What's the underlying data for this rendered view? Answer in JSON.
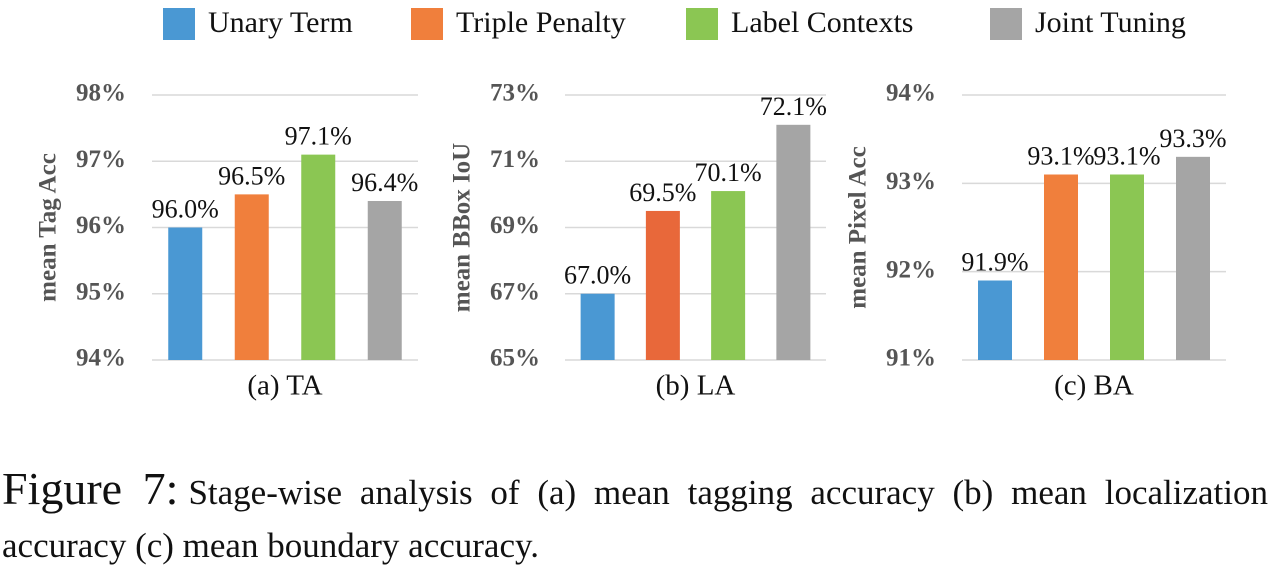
{
  "legend": [
    {
      "name": "Unary Term",
      "color": "#4a98d3"
    },
    {
      "name": "Triple Penalty",
      "color": "#f07f3c"
    },
    {
      "name": "Label Contexts",
      "color": "#8bc653"
    },
    {
      "name": "Joint Tuning",
      "color": "#a5a5a5"
    }
  ],
  "chart_data": [
    {
      "type": "bar",
      "xlabel": "(a) TA",
      "ylabel": "mean Tag Acc",
      "values": [
        96.0,
        96.5,
        97.1,
        96.4
      ],
      "value_labels": [
        "96.0%",
        "96.5%",
        "97.1%",
        "96.4%"
      ],
      "colors": [
        "#4a98d3",
        "#f07f3c",
        "#8bc653",
        "#a5a5a5"
      ],
      "ylim": [
        94,
        98
      ],
      "yticks": [
        {
          "value": 94,
          "label": "94%"
        },
        {
          "value": 95,
          "label": "95%"
        },
        {
          "value": 96,
          "label": "96%"
        },
        {
          "value": 97,
          "label": "97%"
        },
        {
          "value": 98,
          "label": "98%"
        }
      ],
      "grid": true
    },
    {
      "type": "bar",
      "xlabel": "(b) LA",
      "ylabel": "mean BBox IoU",
      "values": [
        67.0,
        69.5,
        70.1,
        72.1
      ],
      "value_labels": [
        "67.0%",
        "69.5%",
        "70.1%",
        "72.1%"
      ],
      "colors": [
        "#4a98d3",
        "#e8683a",
        "#8bc653",
        "#a5a5a5"
      ],
      "ylim": [
        65,
        73
      ],
      "yticks": [
        {
          "value": 65,
          "label": "65%"
        },
        {
          "value": 67,
          "label": "67%"
        },
        {
          "value": 69,
          "label": "69%"
        },
        {
          "value": 71,
          "label": "71%"
        },
        {
          "value": 73,
          "label": "73%"
        }
      ],
      "grid": true
    },
    {
      "type": "bar",
      "xlabel": "(c) BA",
      "ylabel": "mean Pixel Acc",
      "values": [
        91.9,
        93.1,
        93.1,
        93.3
      ],
      "value_labels": [
        "91.9%",
        "93.1%",
        "93.1%",
        "93.3%"
      ],
      "colors": [
        "#4a98d3",
        "#f07f3c",
        "#8bc653",
        "#a5a5a5"
      ],
      "ylim": [
        91,
        94
      ],
      "yticks": [
        {
          "value": 91,
          "label": "91%"
        },
        {
          "value": 92,
          "label": "92%"
        },
        {
          "value": 93,
          "label": "93%"
        },
        {
          "value": 94,
          "label": "94%"
        }
      ],
      "grid": true
    }
  ],
  "caption_label": "Figure 7:",
  "caption": "Stage-wise analysis of (a) mean tagging accuracy (b) mean localization accuracy (c) mean boundary accuracy."
}
